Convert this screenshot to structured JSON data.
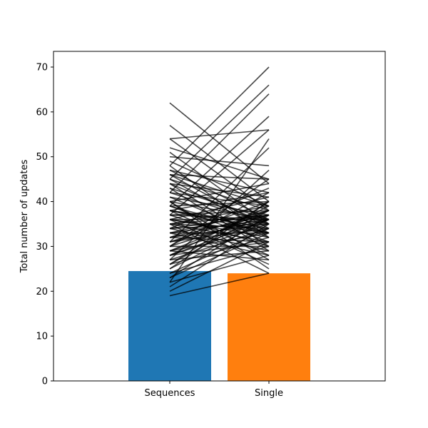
{
  "chart_data": {
    "type": "bar",
    "title": "",
    "xlabel": "",
    "ylabel": "Total number of updates",
    "ylim": [
      0,
      73.5
    ],
    "yticks": [
      "0",
      "10",
      "20",
      "30",
      "40",
      "50",
      "60",
      "70"
    ],
    "categories": [
      "Sequences",
      "Single"
    ],
    "values": [
      24.5,
      24.0
    ],
    "bar_colors": [
      "#1f77b4",
      "#ff7f0e"
    ],
    "line_color": "#000000",
    "paired_lines": [
      [
        62,
        44
      ],
      [
        57,
        40
      ],
      [
        54,
        56
      ],
      [
        54,
        38
      ],
      [
        52,
        45
      ],
      [
        51,
        35
      ],
      [
        50,
        48
      ],
      [
        49,
        39
      ],
      [
        48,
        70
      ],
      [
        48,
        32
      ],
      [
        47,
        42
      ],
      [
        47,
        36
      ],
      [
        46,
        34
      ],
      [
        46,
        45
      ],
      [
        45,
        66
      ],
      [
        45,
        33
      ],
      [
        45,
        38
      ],
      [
        44,
        30
      ],
      [
        44,
        41
      ],
      [
        43,
        36
      ],
      [
        43,
        29
      ],
      [
        42,
        64
      ],
      [
        42,
        35
      ],
      [
        42,
        39
      ],
      [
        41,
        32
      ],
      [
        41,
        37
      ],
      [
        40,
        27
      ],
      [
        40,
        44
      ],
      [
        40,
        36
      ],
      [
        39,
        59
      ],
      [
        39,
        31
      ],
      [
        39,
        40
      ],
      [
        38,
        35
      ],
      [
        38,
        28
      ],
      [
        38,
        42
      ],
      [
        38,
        33
      ],
      [
        37,
        38
      ],
      [
        37,
        30
      ],
      [
        37,
        56
      ],
      [
        36,
        36
      ],
      [
        36,
        26
      ],
      [
        36,
        41
      ],
      [
        35,
        34
      ],
      [
        35,
        39
      ],
      [
        35,
        31
      ],
      [
        34,
        37
      ],
      [
        34,
        29
      ],
      [
        34,
        43
      ],
      [
        33,
        36
      ],
      [
        33,
        33
      ],
      [
        33,
        28
      ],
      [
        32,
        40
      ],
      [
        32,
        35
      ],
      [
        32,
        31
      ],
      [
        31,
        38
      ],
      [
        31,
        34
      ],
      [
        31,
        52
      ],
      [
        30,
        37
      ],
      [
        30,
        30
      ],
      [
        30,
        42
      ],
      [
        29,
        33
      ],
      [
        29,
        36
      ],
      [
        29,
        27
      ],
      [
        28,
        39
      ],
      [
        28,
        35
      ],
      [
        28,
        31
      ],
      [
        27,
        47
      ],
      [
        27,
        34
      ],
      [
        27,
        29
      ],
      [
        26,
        38
      ],
      [
        26,
        32
      ],
      [
        25,
        36
      ],
      [
        25,
        40
      ],
      [
        24,
        30
      ],
      [
        24,
        34
      ],
      [
        23,
        37
      ],
      [
        23,
        33
      ],
      [
        22,
        54
      ],
      [
        22,
        28
      ],
      [
        21,
        35
      ],
      [
        20,
        31
      ],
      [
        19,
        24
      ],
      [
        35,
        24
      ],
      [
        40,
        25
      ],
      [
        30,
        45
      ],
      [
        34,
        35
      ],
      [
        36,
        33
      ],
      [
        32,
        37
      ],
      [
        38,
        34
      ],
      [
        33,
        38
      ],
      [
        37,
        36
      ],
      [
        31,
        36
      ],
      [
        35,
        37
      ],
      [
        39,
        33
      ],
      [
        28,
        36
      ],
      [
        26,
        40
      ],
      [
        44,
        35
      ],
      [
        46,
        39
      ],
      [
        29,
        38
      ],
      [
        36,
        32
      ]
    ]
  }
}
